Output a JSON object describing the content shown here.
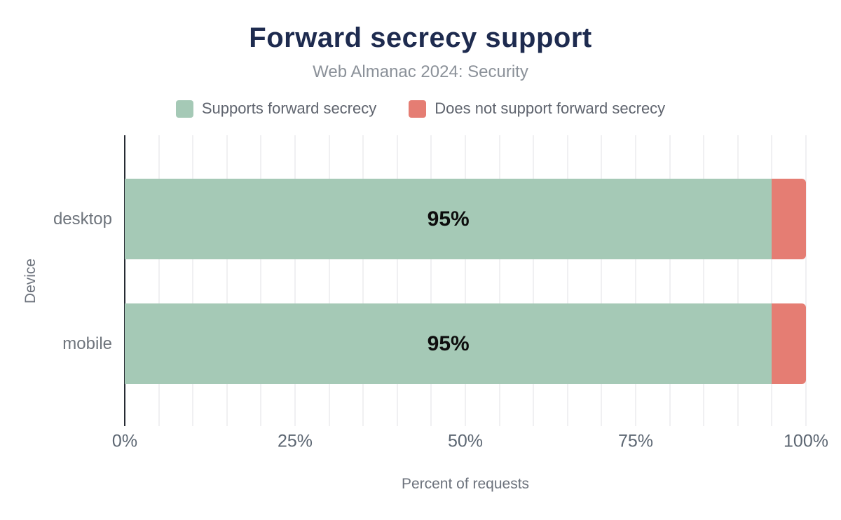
{
  "chart_data": {
    "type": "bar",
    "orientation": "horizontal",
    "stacked": true,
    "title": "Forward secrecy support",
    "subtitle": "Web Almanac 2024: Security",
    "categories": [
      "desktop",
      "mobile"
    ],
    "series": [
      {
        "name": "Supports forward secrecy",
        "color": "#a5c9b6",
        "values": [
          95,
          95
        ]
      },
      {
        "name": "Does not support forward secrecy",
        "color": "#e57d73",
        "values": [
          5,
          5
        ]
      }
    ],
    "bar_labels": [
      "95%",
      "95%"
    ],
    "xlabel": "Percent of requests",
    "ylabel": "Device",
    "xlim": [
      0,
      100
    ],
    "x_ticks": [
      "0%",
      "25%",
      "50%",
      "75%",
      "100%"
    ],
    "x_tick_values": [
      0,
      25,
      50,
      75,
      100
    ],
    "minor_grid_step": 5,
    "grid": true,
    "legend_position": "top"
  },
  "colors": {
    "title": "#1e2b4f",
    "subtitle": "#8b9199",
    "legend_text": "#5f646e",
    "axis_text": "#5c6672",
    "bar_label": "#0d0d0d",
    "gridline": "#f0f0f2",
    "axis_line": "#262b33",
    "background": "#ffffff"
  }
}
